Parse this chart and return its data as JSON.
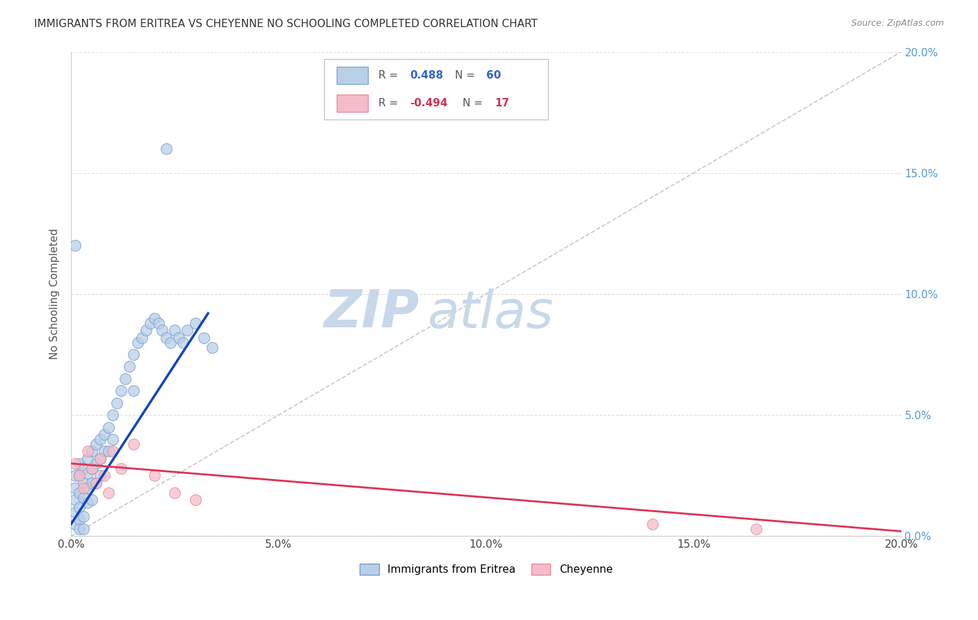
{
  "title": "IMMIGRANTS FROM ERITREA VS CHEYENNE NO SCHOOLING COMPLETED CORRELATION CHART",
  "source": "Source: ZipAtlas.com",
  "ylabel": "No Schooling Completed",
  "legend_blue_r_val": "0.488",
  "legend_blue_n_val": "60",
  "legend_pink_r_val": "-0.494",
  "legend_pink_n_val": "17",
  "legend_label_blue": "Immigrants from Eritrea",
  "legend_label_pink": "Cheyenne",
  "xlim": [
    0.0,
    0.2
  ],
  "ylim": [
    0.0,
    0.2
  ],
  "xticks": [
    0.0,
    0.05,
    0.1,
    0.15,
    0.2
  ],
  "yticks": [
    0.0,
    0.05,
    0.1,
    0.15,
    0.2
  ],
  "xtick_labels": [
    "0.0%",
    "5.0%",
    "10.0%",
    "15.0%",
    "20.0%"
  ],
  "ytick_labels_right": [
    "0.0%",
    "5.0%",
    "10.0%",
    "15.0%",
    "20.0%"
  ],
  "blue_scatter_x": [
    0.001,
    0.001,
    0.001,
    0.001,
    0.001,
    0.002,
    0.002,
    0.002,
    0.002,
    0.002,
    0.002,
    0.003,
    0.003,
    0.003,
    0.003,
    0.003,
    0.004,
    0.004,
    0.004,
    0.004,
    0.005,
    0.005,
    0.005,
    0.005,
    0.006,
    0.006,
    0.006,
    0.007,
    0.007,
    0.007,
    0.008,
    0.008,
    0.009,
    0.009,
    0.01,
    0.01,
    0.011,
    0.012,
    0.013,
    0.014,
    0.015,
    0.015,
    0.016,
    0.017,
    0.018,
    0.019,
    0.02,
    0.021,
    0.022,
    0.023,
    0.024,
    0.025,
    0.026,
    0.027,
    0.028,
    0.03,
    0.032,
    0.034,
    0.001,
    0.023
  ],
  "blue_scatter_y": [
    0.025,
    0.02,
    0.015,
    0.01,
    0.005,
    0.03,
    0.025,
    0.018,
    0.012,
    0.007,
    0.003,
    0.028,
    0.022,
    0.016,
    0.008,
    0.003,
    0.032,
    0.026,
    0.02,
    0.014,
    0.035,
    0.028,
    0.022,
    0.015,
    0.038,
    0.03,
    0.022,
    0.04,
    0.032,
    0.025,
    0.042,
    0.035,
    0.045,
    0.035,
    0.05,
    0.04,
    0.055,
    0.06,
    0.065,
    0.07,
    0.075,
    0.06,
    0.08,
    0.082,
    0.085,
    0.088,
    0.09,
    0.088,
    0.085,
    0.082,
    0.08,
    0.085,
    0.082,
    0.08,
    0.085,
    0.088,
    0.082,
    0.078,
    0.12,
    0.16
  ],
  "pink_scatter_x": [
    0.001,
    0.002,
    0.003,
    0.004,
    0.005,
    0.006,
    0.007,
    0.008,
    0.009,
    0.01,
    0.012,
    0.015,
    0.02,
    0.025,
    0.03,
    0.14,
    0.165
  ],
  "pink_scatter_y": [
    0.03,
    0.025,
    0.02,
    0.035,
    0.028,
    0.022,
    0.032,
    0.025,
    0.018,
    0.035,
    0.028,
    0.038,
    0.025,
    0.018,
    0.015,
    0.005,
    0.003
  ],
  "blue_line_x": [
    0.0,
    0.033
  ],
  "blue_line_y": [
    0.005,
    0.092
  ],
  "pink_line_x": [
    0.0,
    0.2
  ],
  "pink_line_y": [
    0.03,
    0.002
  ],
  "ref_line_x": [
    0.0,
    0.2
  ],
  "ref_line_y": [
    0.0,
    0.2
  ],
  "bg_color": "#ffffff",
  "blue_scatter_face": "#b8cfe8",
  "blue_scatter_edge": "#7799cc",
  "pink_scatter_face": "#f5bbc8",
  "pink_scatter_edge": "#e0889a",
  "blue_line_color": "#1144bb",
  "pink_line_color": "#dd3355",
  "ref_line_color": "#bbbbbb",
  "grid_color": "#dddddd",
  "title_color": "#333333",
  "right_axis_color": "#5599cc",
  "watermark_zip_color": "#c8d8ea",
  "watermark_atlas_color": "#c8d8ea"
}
